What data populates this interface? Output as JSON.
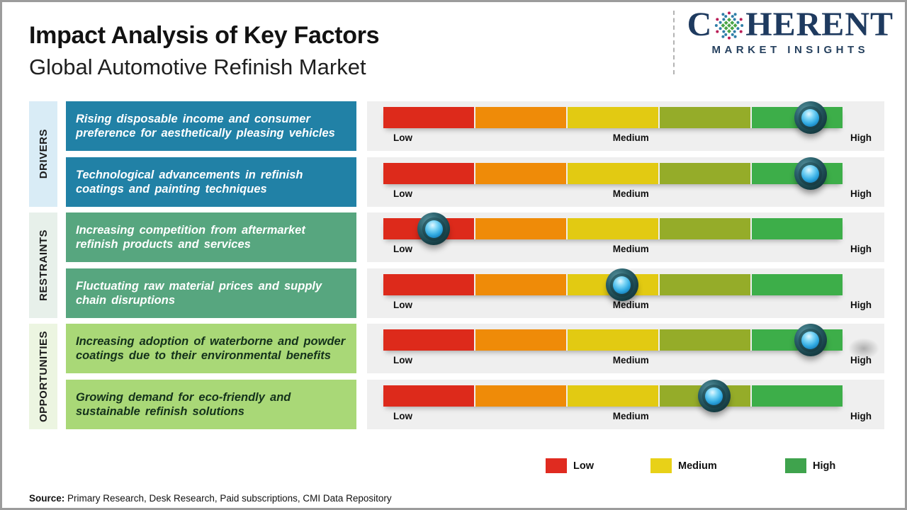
{
  "header": {
    "title": "Impact Analysis of Key Factors",
    "subtitle": "Global Automotive Refinish Market"
  },
  "logo": {
    "word_start": "C",
    "word_end": "HERENT",
    "tagline": "MARKET INSIGHTS",
    "navy": "#1e3a5f"
  },
  "scale": {
    "low": "Low",
    "medium": "Medium",
    "high": "High"
  },
  "groups": [
    {
      "label": "DRIVERS",
      "factors": [
        {
          "text": "Rising disposable income and consumer preference for aesthetically pleasing vehicles",
          "impact_level": "High",
          "impact_percent": 93
        },
        {
          "text": "Technological advancements in refinish coatings and painting techniques",
          "impact_level": "High",
          "impact_percent": 93
        }
      ]
    },
    {
      "label": "RESTRAINTS",
      "factors": [
        {
          "text": "Increasing competition from aftermarket refinish products and services",
          "impact_level": "Low",
          "impact_percent": 11
        },
        {
          "text": "Fluctuating raw material prices and supply chain disruptions",
          "impact_level": "Medium",
          "impact_percent": 52
        }
      ]
    },
    {
      "label": "OPPORTUNITIES",
      "factors": [
        {
          "text": "Increasing adoption of waterborne and powder coatings due to their environmental benefits",
          "impact_level": "High",
          "impact_percent": 93
        },
        {
          "text": "Growing demand for eco-friendly and sustainable refinish solutions",
          "impact_level": "Medium-High",
          "impact_percent": 72
        }
      ]
    }
  ],
  "colors": {
    "segment_red": "#dd2a1b",
    "segment_orange": "#ef8b08",
    "segment_yellow": "#e2ca12",
    "segment_olive": "#95ac29",
    "segment_green": "#3dae49",
    "drivers_box": "#2181a6",
    "restraints_box": "#57a67f",
    "opportunities_box": "#a9d877"
  },
  "legend": [
    {
      "label": "Low",
      "color": "#e02b20"
    },
    {
      "label": "Medium",
      "color": "#e8d118"
    },
    {
      "label": "High",
      "color": "#3fa34d"
    }
  ],
  "source": {
    "prefix": "Source:",
    "text": " Primary Research, Desk Research, Paid subscriptions, CMI Data Repository"
  }
}
